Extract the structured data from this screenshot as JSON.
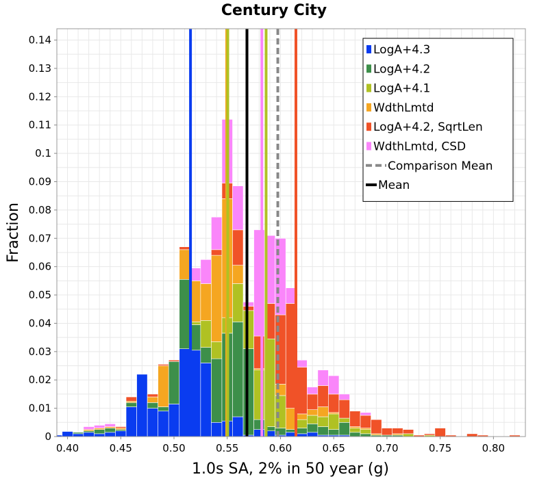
{
  "chart_data": {
    "type": "bar",
    "stacked": true,
    "title": "Century City",
    "xlabel": "1.0s SA, 2% in 50 year (g)",
    "ylabel": "Fraction",
    "xlim": [
      0.39,
      0.83
    ],
    "ylim": [
      0,
      0.144
    ],
    "bin_width": 0.01,
    "grid": true,
    "legend_position": "top-right",
    "x_ticks": [
      0.4,
      0.45,
      0.5,
      0.55,
      0.6,
      0.65,
      0.7,
      0.75,
      0.8
    ],
    "x_tick_labels": [
      "0.40",
      "0.45",
      "0.50",
      "0.55",
      "0.60",
      "0.65",
      "0.70",
      "0.75",
      "0.80"
    ],
    "y_ticks": [
      0,
      0.01,
      0.02,
      0.03,
      0.04,
      0.05,
      0.06,
      0.07,
      0.08,
      0.09,
      0.1,
      0.11,
      0.12,
      0.13,
      0.14
    ],
    "y_tick_labels": [
      "0",
      "0.01",
      "0.02",
      "0.03",
      "0.04",
      "0.05",
      "0.06",
      "0.07",
      "0.08",
      "0.09",
      "0.1",
      "0.11",
      "0.12",
      "0.13",
      "0.14"
    ],
    "bin_centers": [
      0.39,
      0.4,
      0.41,
      0.42,
      0.43,
      0.44,
      0.45,
      0.46,
      0.47,
      0.48,
      0.49,
      0.5,
      0.51,
      0.52,
      0.53,
      0.54,
      0.55,
      0.56,
      0.57,
      0.58,
      0.59,
      0.6,
      0.61,
      0.62,
      0.63,
      0.64,
      0.65,
      0.66,
      0.67,
      0.68,
      0.69,
      0.7,
      0.71,
      0.72,
      0.73,
      0.74,
      0.75,
      0.76,
      0.77,
      0.78,
      0.79,
      0.8,
      0.81,
      0.82,
      0.83
    ],
    "series": [
      {
        "name": "LogA+4.3",
        "color": "#0a3cf0",
        "values": [
          0.0005,
          0.0018,
          0.001,
          0.0015,
          0.001,
          0.0015,
          0.002,
          0.0105,
          0.022,
          0.01,
          0.009,
          0.0115,
          0.031,
          0.0305,
          0.026,
          0.005,
          0.0055,
          0.007,
          0.0005,
          0.0025,
          0.002,
          0.0005,
          0.0015,
          0.001,
          0.0015,
          0.0005,
          0.0005,
          0.0005,
          0,
          0,
          0,
          0,
          0,
          0,
          0,
          0,
          0,
          0,
          0,
          0,
          0,
          0,
          0,
          0,
          0
        ]
      },
      {
        "name": "LogA+4.2",
        "color": "#3d8f4a",
        "values": [
          0,
          0,
          0.0005,
          0.0005,
          0.0015,
          0.0015,
          0.0005,
          0.0015,
          0,
          0.002,
          0.0015,
          0.015,
          0.0245,
          0.009,
          0.0055,
          0.0225,
          0.031,
          0.0335,
          0.0305,
          0.0035,
          0.0015,
          0.0025,
          0.001,
          0.002,
          0.003,
          0.003,
          0.002,
          0.0045,
          0.0015,
          0.001,
          0.0005,
          0.0005,
          0.0005,
          0,
          0,
          0,
          0,
          0,
          0,
          0,
          0,
          0,
          0,
          0,
          0
        ]
      },
      {
        "name": "LogA+4.1",
        "color": "#b0c123",
        "values": [
          0,
          0,
          0,
          0,
          0,
          0,
          0,
          0,
          0,
          0,
          0,
          0,
          0,
          0.001,
          0.0095,
          0.006,
          0.0055,
          0.0135,
          0.0135,
          0.0175,
          0.031,
          0.0115,
          0,
          0.003,
          0.003,
          0.0035,
          0.0055,
          0.0015,
          0.0015,
          0.0015,
          0,
          0,
          0,
          0.001,
          0,
          0.0005,
          0,
          0,
          0,
          0,
          0,
          0,
          0,
          0,
          0
        ]
      },
      {
        "name": "WdthLmtd",
        "color": "#f5a621",
        "values": [
          0,
          0,
          0,
          0.0005,
          0.0005,
          0.0005,
          0.0005,
          0.0005,
          0,
          0.002,
          0.0145,
          0,
          0.0105,
          0.0145,
          0.013,
          0.0305,
          0.042,
          0.0065,
          0,
          0.0005,
          0,
          0.004,
          0.0075,
          0.002,
          0.002,
          0.0035,
          0.0005,
          0,
          0.0005,
          0.0005,
          0.0005,
          0,
          0.0005,
          0,
          0,
          0,
          0,
          0,
          0,
          0,
          0,
          0,
          0,
          0,
          0
        ]
      },
      {
        "name": "LogA+4.2, SqrtLen",
        "color": "#f05228",
        "values": [
          0,
          0,
          0,
          0,
          0,
          0,
          0.0005,
          0.0015,
          0,
          0.001,
          0.0005,
          0.0005,
          0.001,
          0,
          0,
          0.002,
          0.0055,
          0.0125,
          0.0015,
          0.0115,
          0.0125,
          0.0245,
          0.037,
          0.0165,
          0.0055,
          0.0075,
          0.0065,
          0.0065,
          0.0055,
          0.0045,
          0.005,
          0.0025,
          0.002,
          0.0015,
          0.0005,
          0.0005,
          0.003,
          0.0005,
          0,
          0.001,
          0.0005,
          0,
          0,
          0.0005,
          0
        ]
      },
      {
        "name": "WdthLmtd, CSD",
        "color": "#fa86fa",
        "values": [
          0,
          0,
          0,
          0.001,
          0.001,
          0.001,
          0,
          0,
          0,
          0,
          0,
          0,
          0,
          0.0045,
          0.0085,
          0.0115,
          0.0225,
          0.0155,
          0.0015,
          0.0375,
          0.024,
          0.027,
          0.0055,
          0.0025,
          0.0025,
          0.0055,
          0.0065,
          0.002,
          0,
          0.001,
          0,
          0,
          0,
          0,
          0,
          0,
          0,
          0,
          0,
          0,
          0,
          0,
          0,
          0,
          0
        ]
      }
    ],
    "vertical_lines": [
      {
        "x": 0.5155,
        "color": "#0a3cf0",
        "style": "solid",
        "legend": false
      },
      {
        "x": 0.5495,
        "color": "#f5a621",
        "style": "solid",
        "legend": false
      },
      {
        "x": 0.5505,
        "color": "#b0c123",
        "style": "solid",
        "legend": false
      },
      {
        "x": 0.5825,
        "color": "#fa86fa",
        "style": "solid",
        "legend": false
      },
      {
        "x": 0.5865,
        "color": "#b0c123",
        "style": "solid",
        "legend": false
      },
      {
        "x": 0.6145,
        "color": "#f05228",
        "style": "solid",
        "legend": false
      },
      {
        "name": "Comparison Mean",
        "x": 0.5975,
        "color": "#888888",
        "style": "dashed",
        "legend": true
      },
      {
        "name": "Mean",
        "x": 0.5685,
        "color": "#000000",
        "style": "solid",
        "legend": true
      }
    ]
  }
}
